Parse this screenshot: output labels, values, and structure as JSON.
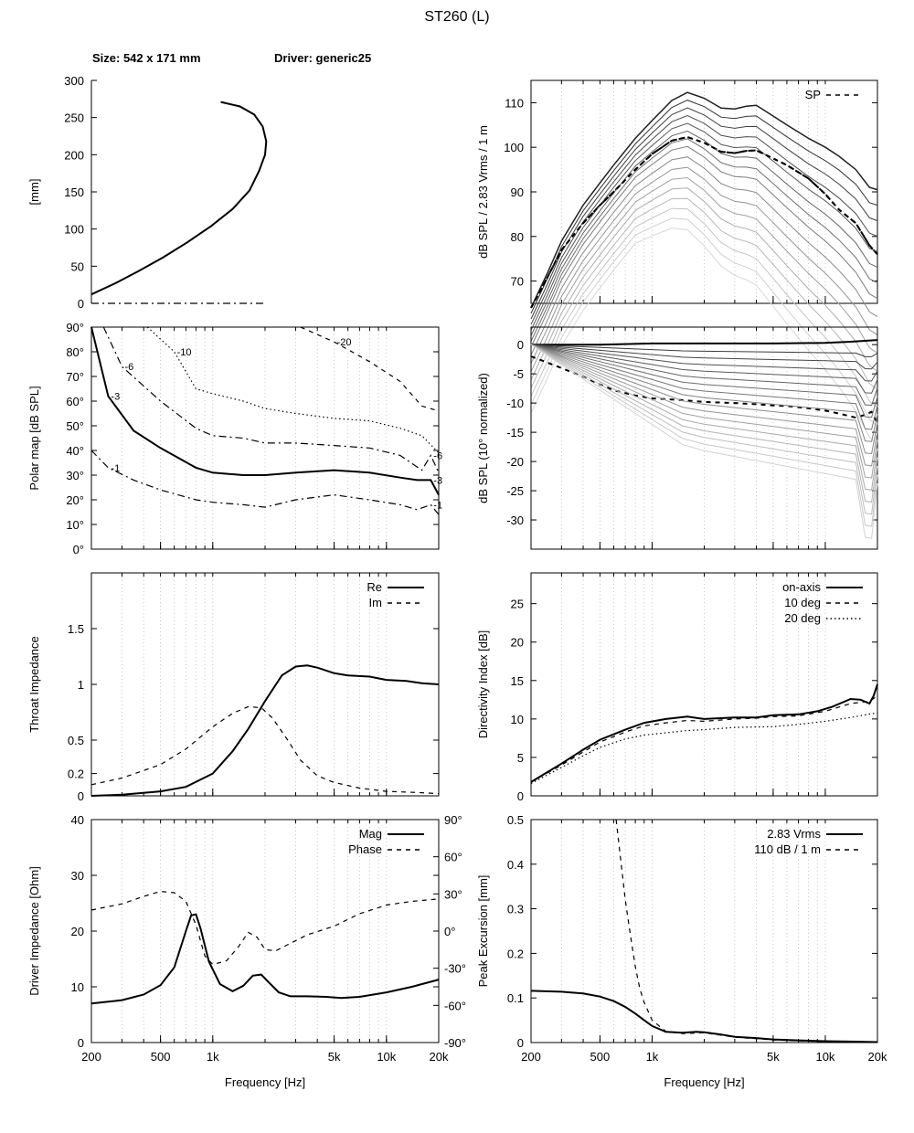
{
  "title": "ST260 (L)",
  "header": {
    "size": "Size: 542 x 171 mm",
    "driver": "Driver: generic25"
  },
  "colors": {
    "line": "#000000",
    "frame": "#000000",
    "grid": "#bbbbbb",
    "bg": "#ffffff"
  },
  "chart_data": [
    {
      "id": "profile",
      "type": "line",
      "ylabel": "[mm]",
      "xlim": [
        0,
        290
      ],
      "ylim": [
        0,
        300
      ],
      "yticks": [
        0,
        50,
        100,
        150,
        200,
        250,
        300
      ],
      "series": [
        {
          "style": "solid",
          "x": [
            0,
            20,
            40,
            60,
            80,
            100,
            118,
            132,
            140,
            145,
            146,
            143,
            136,
            124,
            108
          ],
          "y": [
            12,
            27,
            44,
            62,
            82,
            104,
            127,
            152,
            178,
            200,
            218,
            238,
            254,
            265,
            271
          ]
        },
        {
          "style": "dashdot",
          "x": [
            0,
            146
          ],
          "y": [
            0,
            0
          ]
        }
      ]
    },
    {
      "id": "polar_map",
      "type": "line",
      "ylabel": "Polar map [dB SPL]",
      "xscale": "log",
      "xlim": [
        200,
        20000
      ],
      "ylim": [
        0,
        90
      ],
      "ytick_labels": [
        "0°",
        "10°",
        "20°",
        "30°",
        "40°",
        "50°",
        "60°",
        "70°",
        "80°",
        "90°"
      ],
      "contour_labels": [
        "-1",
        "-3",
        "-6",
        "-10",
        "-20",
        "-3",
        "-6",
        "-1"
      ],
      "series": [
        {
          "level": "-1",
          "style": "dashdot",
          "labels": [
            0,
            7
          ],
          "x": [
            200,
            250,
            350,
            500,
            800,
            1000,
            1500,
            2000,
            3000,
            5000,
            8000,
            12000,
            15000,
            18000,
            20000
          ],
          "y": [
            40,
            33,
            28,
            24,
            20,
            19,
            18,
            17,
            20,
            22,
            20,
            18,
            16,
            18,
            14
          ]
        },
        {
          "level": "-3",
          "style": "solid",
          "labels": [
            1,
            5
          ],
          "x": [
            200,
            250,
            350,
            500,
            800,
            1000,
            1500,
            2000,
            3000,
            5000,
            8000,
            12000,
            15000,
            18000,
            20000
          ],
          "y": [
            90,
            62,
            48,
            41,
            33,
            31,
            30,
            30,
            31,
            32,
            31,
            29,
            28,
            28,
            22
          ]
        },
        {
          "level": "-6",
          "style": "dashdot",
          "labels": [
            2,
            6
          ],
          "x": [
            235,
            300,
            500,
            800,
            1000,
            1500,
            2000,
            3000,
            5000,
            8000,
            12000,
            16000,
            18000,
            20000
          ],
          "y": [
            90,
            74,
            60,
            49,
            46,
            45,
            43,
            43,
            42,
            41,
            38,
            32,
            38,
            31
          ]
        },
        {
          "level": "-10",
          "style": "dotted",
          "labels": [
            3
          ],
          "x": [
            420,
            600,
            800,
            1000,
            1500,
            2000,
            3000,
            5000,
            8000,
            12000,
            16000,
            20000
          ],
          "y": [
            90,
            80,
            65,
            63,
            60,
            57,
            55,
            53,
            52,
            49,
            46,
            39
          ]
        },
        {
          "level": "-20",
          "style": "dashed",
          "labels": [
            4
          ],
          "x": [
            3200,
            5000,
            8000,
            12000,
            16000,
            20000
          ],
          "y": [
            90,
            84,
            76,
            68,
            58,
            56
          ]
        }
      ]
    },
    {
      "id": "throat_impedance",
      "type": "line",
      "ylabel": "Throat Impedance",
      "xscale": "log",
      "xlim": [
        200,
        20000
      ],
      "ylim": [
        0,
        2
      ],
      "ytick_values": [
        0,
        0.2,
        0.5,
        1,
        1.5
      ],
      "ytick_labels": [
        "0",
        "0.2",
        "0.5",
        "1",
        "1.5"
      ],
      "legend_position": "top-right",
      "series": [
        {
          "name": "Re",
          "style": "solid",
          "x": [
            200,
            300,
            500,
            700,
            1000,
            1300,
            1600,
            2000,
            2500,
            3000,
            3500,
            4000,
            5000,
            6000,
            8000,
            10000,
            13000,
            16000,
            20000
          ],
          "y": [
            0.0,
            0.01,
            0.04,
            0.08,
            0.2,
            0.4,
            0.6,
            0.85,
            1.08,
            1.16,
            1.17,
            1.15,
            1.1,
            1.08,
            1.07,
            1.04,
            1.03,
            1.01,
            1.0
          ]
        },
        {
          "name": "Im",
          "style": "dashed",
          "x": [
            200,
            300,
            500,
            700,
            1000,
            1300,
            1600,
            1900,
            2200,
            2700,
            3200,
            4000,
            5000,
            7000,
            10000,
            15000,
            20000
          ],
          "y": [
            0.1,
            0.16,
            0.28,
            0.42,
            0.62,
            0.74,
            0.8,
            0.79,
            0.7,
            0.5,
            0.32,
            0.18,
            0.12,
            0.07,
            0.04,
            0.03,
            0.02
          ]
        }
      ]
    },
    {
      "id": "driver_impedance",
      "type": "line",
      "ylabel": "Driver Impedance [Ohm]",
      "xlabel": "Frequency [Hz]",
      "xscale": "log",
      "xlim": [
        200,
        20000
      ],
      "ylim": [
        0,
        40
      ],
      "yticks": [
        0,
        10,
        20,
        30,
        40
      ],
      "y2lim": [
        -90,
        90
      ],
      "y2tick_labels": [
        "-90°",
        "-60°",
        "-30°",
        "0°",
        "30°",
        "60°",
        "90°"
      ],
      "legend_position": "top-right",
      "series": [
        {
          "name": "Mag",
          "style": "solid",
          "axis": "left",
          "x": [
            200,
            300,
            400,
            500,
            600,
            700,
            750,
            800,
            850,
            950,
            1100,
            1300,
            1500,
            1700,
            1900,
            2100,
            2400,
            2800,
            3500,
            4500,
            5500,
            7000,
            10000,
            14000,
            20000
          ],
          "y": [
            7.0,
            7.6,
            8.6,
            10.3,
            13.5,
            20.0,
            22.8,
            23.0,
            20.5,
            14.5,
            10.5,
            9.2,
            10.2,
            12.0,
            12.2,
            10.8,
            9.0,
            8.3,
            8.3,
            8.2,
            8.0,
            8.2,
            9.0,
            10.0,
            11.3
          ]
        },
        {
          "name": "Phase",
          "style": "dashed",
          "axis": "right",
          "x": [
            200,
            300,
            400,
            500,
            600,
            700,
            800,
            900,
            1000,
            1200,
            1400,
            1600,
            1800,
            2000,
            2300,
            2700,
            3500,
            5000,
            7000,
            10000,
            14000,
            20000
          ],
          "y": [
            17,
            22,
            28,
            32,
            31,
            24,
            5,
            -20,
            -27,
            -24,
            -13,
            -1,
            -5,
            -15,
            -16,
            -11,
            -3,
            4,
            14,
            21,
            24,
            26
          ]
        }
      ]
    },
    {
      "id": "spl_response",
      "type": "line",
      "ylabel": "dB SPL / 2.83 Vrms / 1 m",
      "xscale": "log",
      "xlim": [
        200,
        20000
      ],
      "ylim": [
        65,
        115
      ],
      "yticks": [
        70,
        80,
        90,
        100,
        110
      ],
      "legend_position": "top-right",
      "series": [
        {
          "name": "SP",
          "style": "dashed",
          "x": [
            200,
            250,
            300,
            400,
            500,
            600,
            800,
            1000,
            1300,
            1600,
            2000,
            2500,
            3000,
            3500,
            4000,
            5000,
            6000,
            8000,
            10000,
            12000,
            15000,
            18000,
            20000
          ],
          "y": [
            64,
            71,
            77,
            83,
            87,
            90,
            95,
            98.5,
            101.5,
            102.3,
            101,
            99,
            98.7,
            99.2,
            99.3,
            97.5,
            96,
            93,
            89.5,
            86,
            83,
            78,
            76
          ]
        },
        {
          "style": "fan",
          "x": [
            200,
            250,
            300,
            400,
            500,
            600,
            800,
            1000,
            1300,
            1600,
            2000,
            2500,
            3000,
            3500,
            4000,
            5000,
            6000,
            8000,
            10000,
            12000,
            15000,
            18000,
            20000
          ],
          "y": [
            64,
            72,
            79,
            87,
            92,
            96,
            102,
            106,
            110.5,
            112.3,
            111,
            108.8,
            108.6,
            109.2,
            109.4,
            107,
            105,
            102,
            100,
            98,
            95,
            91,
            90.5
          ]
        }
      ]
    },
    {
      "id": "spl_normalized",
      "type": "line",
      "ylabel": "dB SPL (10° normalized)",
      "xscale": "log",
      "xlim": [
        200,
        20000
      ],
      "ylim": [
        -35,
        3
      ],
      "yticks": [
        -30,
        -25,
        -20,
        -15,
        -10,
        -5,
        0
      ],
      "series": [
        {
          "style": "solid",
          "x": [
            200,
            500,
            1000,
            2000,
            5000,
            10000,
            14000,
            20000
          ],
          "y": [
            0,
            0,
            0.2,
            0.2,
            0.2,
            0.3,
            0.5,
            0.8
          ]
        },
        {
          "style": "dashed",
          "x": [
            200,
            300,
            400,
            500,
            600,
            800,
            1000,
            1500,
            2000,
            3000,
            4000,
            5000,
            6000,
            8000,
            10000,
            12000,
            15000,
            17000,
            18500,
            20000
          ],
          "y": [
            -2,
            -4,
            -5.5,
            -6.8,
            -7.8,
            -8.7,
            -9.2,
            -9.5,
            -9.8,
            -10.0,
            -10.2,
            -10.4,
            -10.5,
            -10.9,
            -11.3,
            -11.8,
            -12.5,
            -12.0,
            -11.5,
            -13.5
          ]
        }
      ]
    },
    {
      "id": "directivity_index",
      "type": "line",
      "ylabel": "Directivity Index [dB]",
      "xscale": "log",
      "xlim": [
        200,
        20000
      ],
      "ylim": [
        0,
        29
      ],
      "yticks": [
        0,
        5,
        10,
        15,
        20,
        25
      ],
      "legend_position": "top-right",
      "series": [
        {
          "name": "on-axis",
          "style": "solid",
          "x": [
            200,
            300,
            400,
            500,
            700,
            900,
            1200,
            1600,
            2000,
            3000,
            4000,
            5000,
            7000,
            9000,
            11000,
            14000,
            16000,
            18000,
            19000,
            20000
          ],
          "y": [
            1.8,
            4.2,
            6.0,
            7.3,
            8.6,
            9.5,
            10.0,
            10.3,
            10.0,
            10.2,
            10.2,
            10.5,
            10.6,
            11.0,
            11.6,
            12.6,
            12.5,
            12.0,
            13.0,
            14.5
          ]
        },
        {
          "name": "10 deg",
          "style": "dashed",
          "x": [
            200,
            300,
            400,
            500,
            700,
            900,
            1200,
            1600,
            2000,
            3000,
            4000,
            5000,
            7000,
            10000,
            14000,
            18000,
            20000
          ],
          "y": [
            1.8,
            4.0,
            5.7,
            7.0,
            8.3,
            9.1,
            9.5,
            9.8,
            9.7,
            10.0,
            10.1,
            10.3,
            10.4,
            11.0,
            12.0,
            12.3,
            13.0
          ]
        },
        {
          "name": "20 deg",
          "style": "dotted",
          "x": [
            200,
            300,
            400,
            500,
            700,
            900,
            1200,
            1600,
            2000,
            3000,
            5000,
            7000,
            10000,
            14000,
            20000
          ],
          "y": [
            1.6,
            3.7,
            5.2,
            6.3,
            7.4,
            7.9,
            8.2,
            8.5,
            8.6,
            8.9,
            9.0,
            9.3,
            9.7,
            10.2,
            10.8
          ]
        }
      ]
    },
    {
      "id": "peak_excursion",
      "type": "line",
      "ylabel": "Peak Excursion [mm]",
      "xlabel": "Frequency [Hz]",
      "xscale": "log",
      "xlim": [
        200,
        20000
      ],
      "ylim": [
        0,
        0.5
      ],
      "ytick_values": [
        0,
        0.1,
        0.2,
        0.3,
        0.4,
        0.5
      ],
      "ytick_labels": [
        "0",
        "0.1",
        "0.2",
        "0.3",
        "0.4",
        "0.5"
      ],
      "legend_position": "top-right",
      "series": [
        {
          "name": "2.83 Vrms",
          "style": "solid",
          "x": [
            200,
            300,
            400,
            500,
            600,
            700,
            800,
            900,
            1000,
            1200,
            1500,
            1800,
            2000,
            2500,
            3000,
            4000,
            5000,
            7000,
            10000,
            15000,
            20000
          ],
          "y": [
            0.116,
            0.114,
            0.11,
            0.103,
            0.093,
            0.08,
            0.065,
            0.05,
            0.037,
            0.024,
            0.022,
            0.024,
            0.023,
            0.018,
            0.013,
            0.01,
            0.007,
            0.005,
            0.003,
            0.002,
            0.001
          ]
        },
        {
          "name": "110 dB / 1 m",
          "style": "dashed",
          "x": [
            620,
            650,
            700,
            750,
            800,
            850,
            900,
            1000,
            1200,
            1500,
            2000,
            3000,
            5000,
            10000,
            20000
          ],
          "y": [
            0.5,
            0.43,
            0.32,
            0.24,
            0.17,
            0.12,
            0.09,
            0.05,
            0.025,
            0.02,
            0.022,
            0.012,
            0.006,
            0.002,
            0.001
          ]
        }
      ]
    }
  ]
}
